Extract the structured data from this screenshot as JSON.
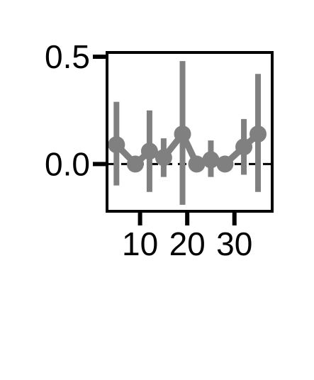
{
  "chart_data": {
    "type": "line",
    "title": "",
    "xlabel": "",
    "ylabel": "",
    "xlim": [
      3,
      38
    ],
    "ylim": [
      -0.22,
      0.52
    ],
    "xticks": [
      10,
      20,
      30
    ],
    "xtick_labels": [
      "10",
      "20",
      "30"
    ],
    "yticks": [
      0.5,
      0.0
    ],
    "ytick_labels": [
      "0.5",
      "0.0"
    ],
    "reference_line": {
      "y": 0.0,
      "style": "dashed"
    },
    "grid": false,
    "legend": "none",
    "series": [
      {
        "color": "#808080",
        "points": [
          {
            "x": 5,
            "y": 0.09,
            "err_low": -0.1,
            "err_high": 0.29
          },
          {
            "x": 9,
            "y": 0.0,
            "err_low": 0.0,
            "err_high": 0.0
          },
          {
            "x": 12,
            "y": 0.06,
            "err_low": -0.13,
            "err_high": 0.25
          },
          {
            "x": 15,
            "y": 0.03,
            "err_low": -0.06,
            "err_high": 0.12
          },
          {
            "x": 19,
            "y": 0.14,
            "err_low": -0.19,
            "err_high": 0.48
          },
          {
            "x": 22,
            "y": 0.0,
            "err_low": 0.0,
            "err_high": 0.0
          },
          {
            "x": 25,
            "y": 0.02,
            "err_low": -0.06,
            "err_high": 0.11
          },
          {
            "x": 28,
            "y": 0.0,
            "err_low": 0.0,
            "err_high": 0.0
          },
          {
            "x": 32,
            "y": 0.08,
            "err_low": -0.05,
            "err_high": 0.21
          },
          {
            "x": 35,
            "y": 0.14,
            "err_low": -0.13,
            "err_high": 0.42
          }
        ]
      }
    ]
  }
}
